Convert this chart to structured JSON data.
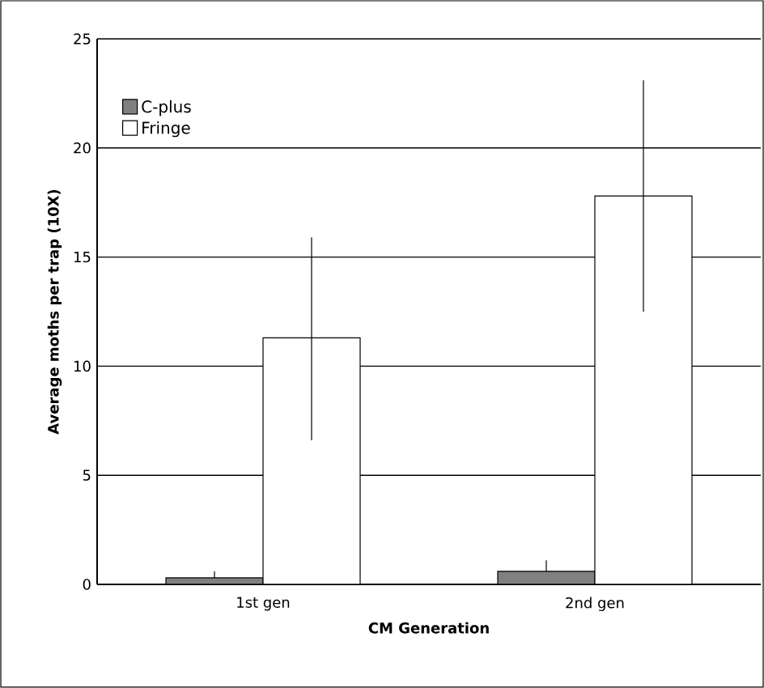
{
  "chart_data": {
    "type": "bar",
    "xlabel": "CM Generation",
    "ylabel": "Average moths per trap (10X)",
    "categories": [
      "1st gen",
      "2nd gen"
    ],
    "series": [
      {
        "name": "C-plus",
        "color": "#808080",
        "values": [
          0.3,
          0.6
        ],
        "errors": [
          [
            0.3,
            0.6
          ],
          [
            0.6,
            1.1
          ]
        ]
      },
      {
        "name": "Fringe",
        "color": "#ffffff",
        "values": [
          11.3,
          17.8
        ],
        "errors": [
          [
            6.6,
            15.9
          ],
          [
            12.5,
            23.1
          ]
        ]
      }
    ],
    "ylim": [
      0,
      25
    ],
    "yticks": [
      0,
      5,
      10,
      15,
      20,
      25
    ],
    "grid": "y",
    "legend": "top left"
  }
}
